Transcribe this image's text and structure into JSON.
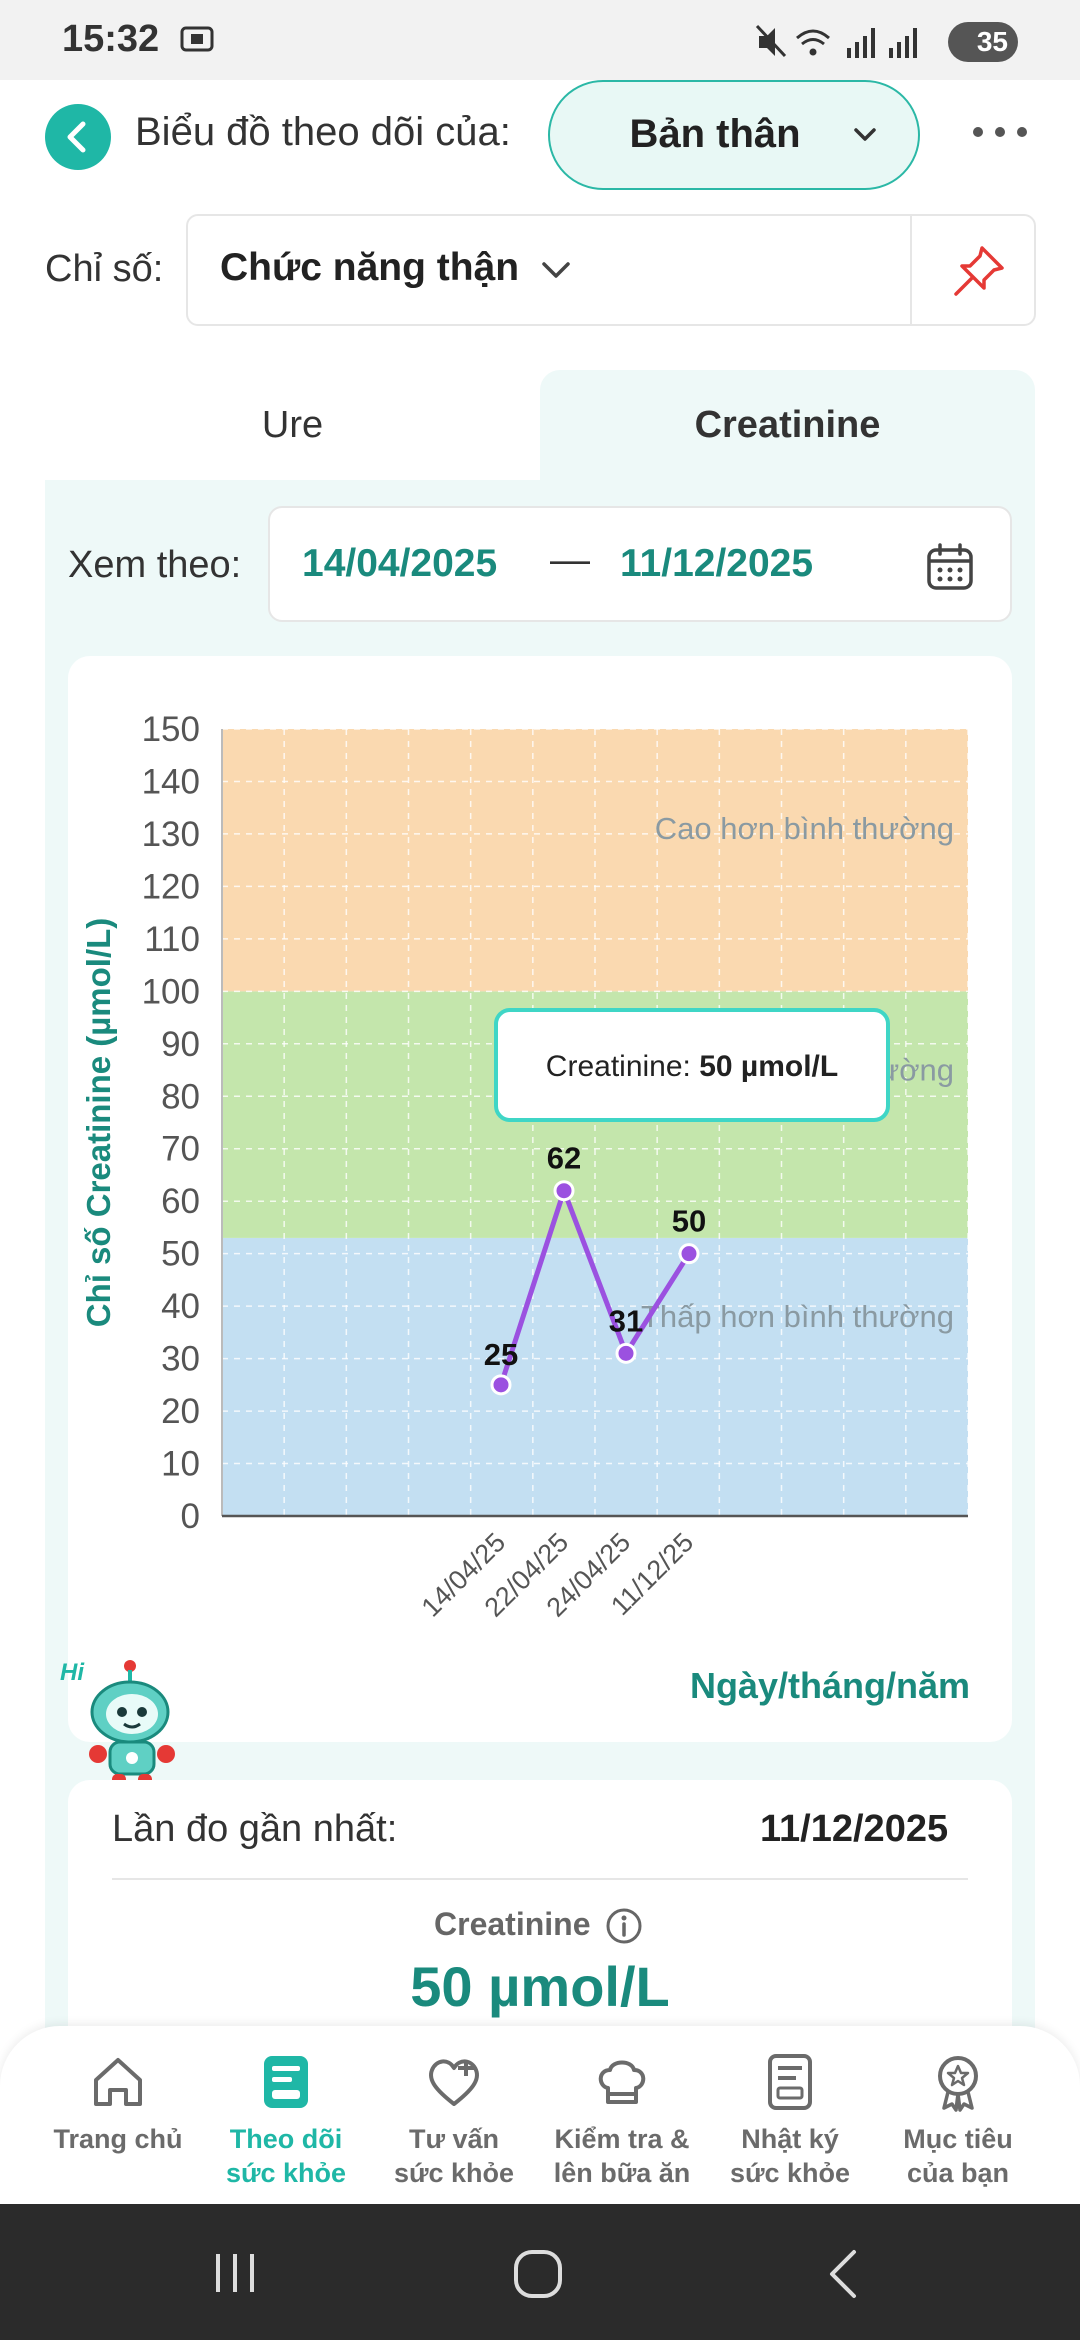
{
  "status_bar": {
    "time": "15:32",
    "battery": "35"
  },
  "header": {
    "label": "Biểu đồ theo dõi của:",
    "subject_value": "Bản thân"
  },
  "metric": {
    "label": "Chỉ số:",
    "value": "Chức năng thận"
  },
  "tabs": [
    {
      "label": "Ure",
      "active": false
    },
    {
      "label": "Creatinine",
      "active": true
    }
  ],
  "date_range": {
    "label": "Xem theo:",
    "from": "14/04/2025",
    "separator": "—",
    "to": "11/12/2025"
  },
  "chart_data": {
    "type": "line",
    "ylabel": "Chỉ số Creatinine (µmol/L)",
    "xlabel": "Ngày/tháng/năm",
    "ylim": [
      0,
      150
    ],
    "yticks": [
      0,
      10,
      20,
      30,
      40,
      50,
      60,
      70,
      80,
      90,
      100,
      110,
      120,
      130,
      140,
      150
    ],
    "categories": [
      "14/04/25",
      "22/04/25",
      "24/04/25",
      "11/12/25"
    ],
    "values": [
      25,
      62,
      31,
      50
    ],
    "bands": [
      {
        "label": "Thấp hơn bình thường",
        "from": 0,
        "to": 53,
        "color": "#c3dff2"
      },
      {
        "label": "Bình thường",
        "from": 53,
        "to": 100,
        "color": "#c4e6ac",
        "label_partial": "ường"
      },
      {
        "label": "Cao hơn bình thường",
        "from": 100,
        "to": 150,
        "color": "#fad9b0"
      }
    ],
    "line_color": "#9b51e0",
    "tooltip": {
      "prefix": "Creatinine: ",
      "value": "50 µmol/L"
    },
    "grid": true
  },
  "latest": {
    "label": "Lần đo gần nhất:",
    "date": "11/12/2025",
    "metric": "Creatinine",
    "value": "50 µmol/L"
  },
  "mascot": {
    "greeting": "Hi"
  },
  "bottom_nav": [
    {
      "label1": "Trang chủ",
      "label2": "",
      "icon": "home-icon"
    },
    {
      "label1": "Theo dõi",
      "label2": "sức khỏe",
      "icon": "health-tracking-icon",
      "active": true
    },
    {
      "label1": "Tư vấn",
      "label2": "sức khỏe",
      "icon": "heart-plus-icon"
    },
    {
      "label1": "Kiểm tra &",
      "label2": "lên bữa ăn",
      "icon": "chef-hat-icon"
    },
    {
      "label1": "Nhật ký",
      "label2": "sức khỏe",
      "icon": "journal-icon"
    },
    {
      "label1": "Mục tiêu",
      "label2": "của bạn",
      "icon": "medal-icon"
    }
  ],
  "colors": {
    "accent": "#1fb7a6",
    "accent_dark": "#1a8a7d",
    "panel_bg": "#eef9f8"
  }
}
